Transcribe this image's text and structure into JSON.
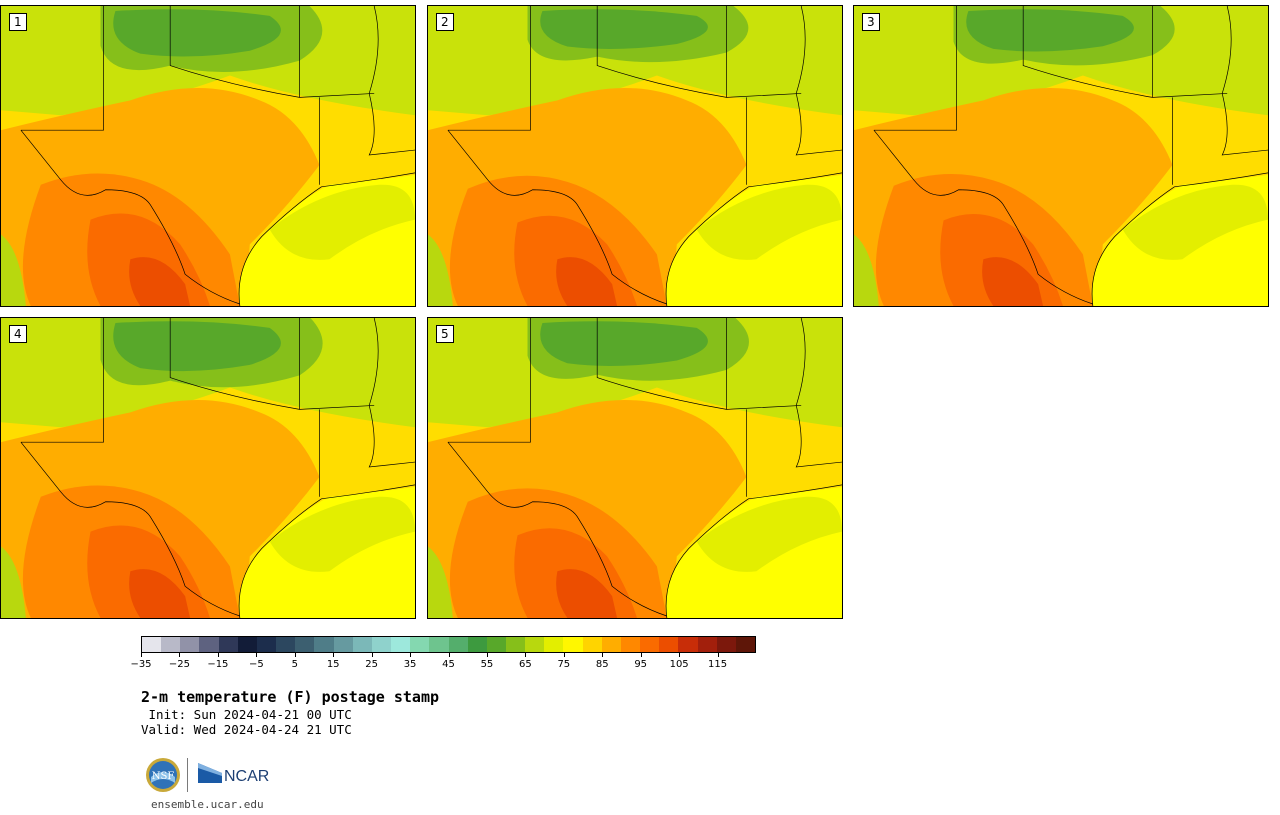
{
  "panels": [
    {
      "label": "1",
      "cool_strength": 1.0,
      "hot_strength": 1.0
    },
    {
      "label": "2",
      "cool_strength": 0.85,
      "hot_strength": 0.8
    },
    {
      "label": "3",
      "cool_strength": 0.9,
      "hot_strength": 0.95
    },
    {
      "label": "4",
      "cool_strength": 1.05,
      "hot_strength": 1.0
    },
    {
      "label": "5",
      "cool_strength": 0.95,
      "hot_strength": 0.75
    }
  ],
  "colorbar": {
    "min": -35,
    "max": 120,
    "step": 5,
    "tick_labels": [
      "−35",
      "−25",
      "−15",
      "−5",
      "5",
      "15",
      "25",
      "35",
      "45",
      "55",
      "65",
      "75",
      "85",
      "95",
      "105",
      "115"
    ],
    "tick_values": [
      -35,
      -25,
      -15,
      -5,
      5,
      15,
      25,
      35,
      45,
      55,
      65,
      75,
      85,
      95,
      105,
      115
    ],
    "colors": [
      "#e5e5ec",
      "#b8b9c8",
      "#9192a8",
      "#5e6280",
      "#2f3858",
      "#121c38",
      "#1c2d4c",
      "#2c475f",
      "#3c5f70",
      "#4f7d88",
      "#669aa0",
      "#7bb8b8",
      "#8fd2cc",
      "#9de8dc",
      "#84d8b0",
      "#6ec48e",
      "#54ae6c",
      "#3d9a3f",
      "#58a82a",
      "#86bf1a",
      "#b8d80e",
      "#e3ee00",
      "#fff700",
      "#ffd400",
      "#ffad00",
      "#ff8800",
      "#fa6b00",
      "#ec4e00",
      "#c82d08",
      "#a21f0c",
      "#7c180c",
      "#5e1608"
    ]
  },
  "title": "2-m temperature (F) postage stamp",
  "init": " Init: Sun 2024-04-21 00 UTC",
  "valid": "Valid: Wed 2024-04-24 21 UTC",
  "logos": {
    "nsf": "NSF",
    "ncar": "NCAR"
  },
  "site": "ensemble.ucar.edu"
}
